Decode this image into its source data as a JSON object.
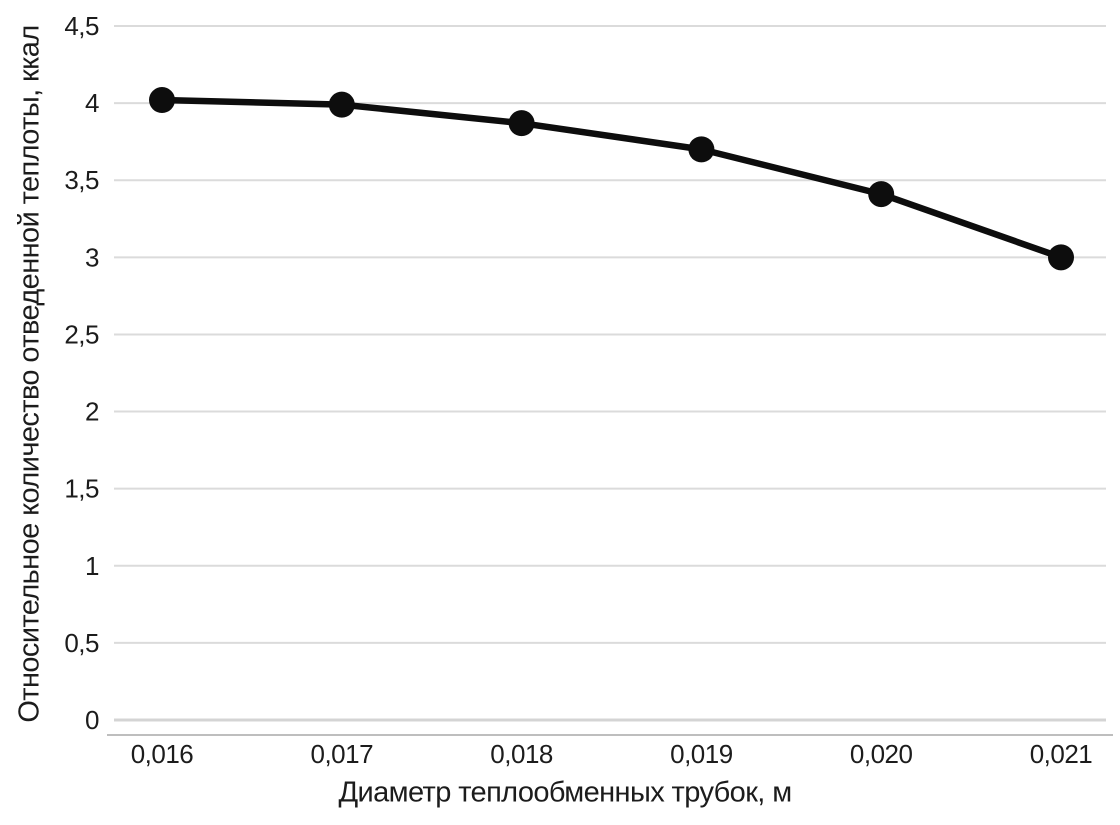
{
  "chart_data": {
    "type": "line",
    "title": "",
    "xlabel": "Диаметр теплообменных трубок, м",
    "ylabel": "Относительное количество отведенной теплоты, ккал",
    "x": [
      0.016,
      0.017,
      0.018,
      0.019,
      0.02,
      0.021
    ],
    "x_tick_labels": [
      "0,016",
      "0,017",
      "0,018",
      "0,019",
      "0,020",
      "0,021"
    ],
    "series": [
      {
        "name": "Относительное количество отведенной теплоты, ккал",
        "values": [
          4.02,
          3.99,
          3.87,
          3.7,
          3.41,
          3.0
        ]
      }
    ],
    "ylim": [
      0,
      4.5
    ],
    "y_ticks": [
      0,
      0.5,
      1,
      1.5,
      2,
      2.5,
      3,
      3.5,
      4,
      4.5
    ],
    "y_tick_labels": [
      "0",
      "0,5",
      "1",
      "1,5",
      "2",
      "2,5",
      "3",
      "3,5",
      "4",
      "4,5"
    ],
    "grid": "horizontal",
    "legend": "none",
    "style": {
      "line_color": "#0d0d0d",
      "marker_color": "#0d0d0d",
      "marker_shape": "circle",
      "gridline_color": "#dbdbdb",
      "zero_gridline_color": "#d4d4d4",
      "axis_line_color": "#a8a8a8",
      "text_color": "#1c1c1c",
      "background_color": "#ffffff"
    }
  }
}
